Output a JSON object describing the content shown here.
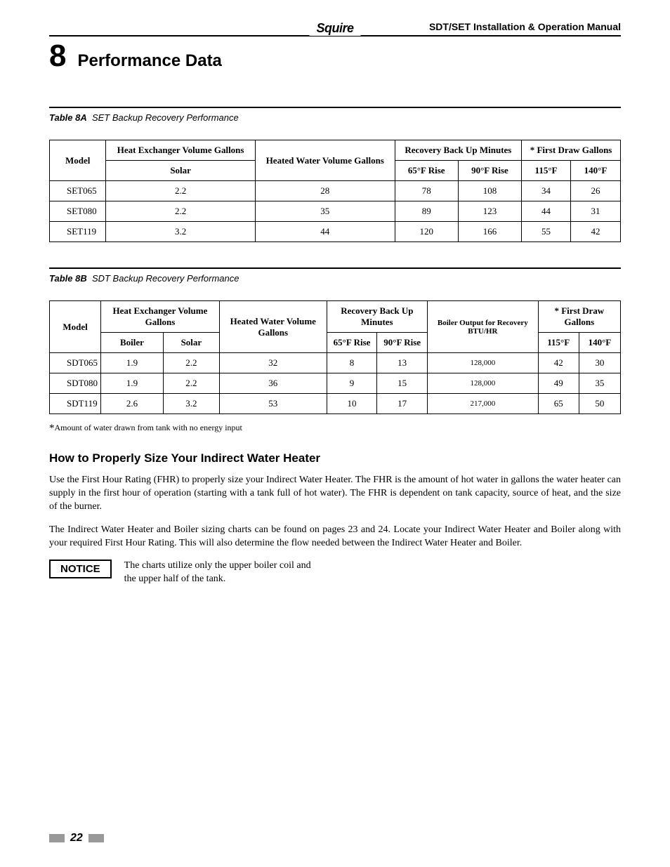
{
  "header": {
    "logo": "Squire",
    "manual": "SDT/SET Installation & Operation Manual"
  },
  "section": {
    "number": "8",
    "title": "Performance Data"
  },
  "table8a": {
    "caption_label": "Table 8A",
    "caption_text": "SET Backup Recovery Performance",
    "head": {
      "model": "Model",
      "hx_vol": "Heat Exchanger Volume Gallons",
      "solar": "Solar",
      "heated_vol": "Heated Water Volume Gallons",
      "recovery": "Recovery Back Up Minutes",
      "rise65": "65°F  Rise",
      "rise90": "90°F Rise",
      "first_draw": "* First Draw Gallons",
      "fd115": "115°F",
      "fd140": "140°F"
    },
    "rows": [
      {
        "model": "SET065",
        "solar": "2.2",
        "heated": "28",
        "r65": "78",
        "r90": "108",
        "f115": "34",
        "f140": "26"
      },
      {
        "model": "SET080",
        "solar": "2.2",
        "heated": "35",
        "r65": "89",
        "r90": "123",
        "f115": "44",
        "f140": "31"
      },
      {
        "model": "SET119",
        "solar": "3.2",
        "heated": "44",
        "r65": "120",
        "r90": "166",
        "f115": "55",
        "f140": "42"
      }
    ]
  },
  "table8b": {
    "caption_label": "Table 8B",
    "caption_text": "SDT Backup Recovery Performance",
    "head": {
      "model": "Model",
      "hx_vol": "Heat Exchanger Volume Gallons",
      "boiler": "Boiler",
      "solar": "Solar",
      "heated_vol": "Heated Water Volume Gallons",
      "recovery": "Recovery Back Up Minutes",
      "rise65": "65°F Rise",
      "rise90": "90°F Rise",
      "boiler_out": "Boiler Output for Recovery BTU/HR",
      "first_draw": "* First Draw Gallons",
      "fd115": "115°F",
      "fd140": "140°F"
    },
    "rows": [
      {
        "model": "SDT065",
        "boiler": "1.9",
        "solar": "2.2",
        "heated": "32",
        "r65": "8",
        "r90": "13",
        "btu": "128,000",
        "f115": "42",
        "f140": "30"
      },
      {
        "model": "SDT080",
        "boiler": "1.9",
        "solar": "2.2",
        "heated": "36",
        "r65": "9",
        "r90": "15",
        "btu": "128,000",
        "f115": "49",
        "f140": "35"
      },
      {
        "model": "SDT119",
        "boiler": "2.6",
        "solar": "3.2",
        "heated": "53",
        "r65": "10",
        "r90": "17",
        "btu": "217,000",
        "f115": "65",
        "f140": "50"
      }
    ]
  },
  "footnote": "Amount of water drawn from tank with no energy input",
  "sizing": {
    "heading": "How to Properly Size Your Indirect Water Heater",
    "p1": "Use the First Hour Rating (FHR) to properly size your Indirect Water Heater. The FHR is the amount of hot water in gallons the water heater can supply in the first hour of operation (starting with a tank full of hot water). The FHR is dependent on tank capacity, source of heat, and the size of the burner.",
    "p2": "The Indirect Water Heater and Boiler sizing charts can be found on pages 23 and 24. Locate your Indirect Water Heater and Boiler along with your required First Hour Rating. This will also determine the flow needed between the Indirect Water Heater and Boiler."
  },
  "notice": {
    "label": "NOTICE",
    "text": "The charts utilize only the upper boiler coil and the upper half of the tank."
  },
  "page": "22"
}
